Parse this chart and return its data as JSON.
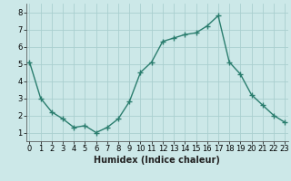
{
  "x": [
    0,
    1,
    2,
    3,
    4,
    5,
    6,
    7,
    8,
    9,
    10,
    11,
    12,
    13,
    14,
    15,
    16,
    17,
    18,
    19,
    20,
    21,
    22,
    23
  ],
  "y": [
    5.1,
    3.0,
    2.2,
    1.8,
    1.3,
    1.4,
    1.0,
    1.3,
    1.8,
    2.8,
    4.5,
    5.1,
    6.3,
    6.5,
    6.7,
    6.8,
    7.2,
    7.8,
    5.1,
    4.4,
    3.2,
    2.6,
    2.0,
    1.6
  ],
  "xlabel": "Humidex (Indice chaleur)",
  "line_color": "#2a7d6e",
  "marker_color": "#2a7d6e",
  "bg_color": "#cce8e8",
  "grid_color": "#aacfcf",
  "xlim": [
    -0.3,
    23.3
  ],
  "ylim": [
    0.5,
    8.5
  ],
  "yticks": [
    1,
    2,
    3,
    4,
    5,
    6,
    7,
    8
  ],
  "xticks": [
    0,
    1,
    2,
    3,
    4,
    5,
    6,
    7,
    8,
    9,
    10,
    11,
    12,
    13,
    14,
    15,
    16,
    17,
    18,
    19,
    20,
    21,
    22,
    23
  ],
  "tick_fontsize": 6.0,
  "xlabel_fontsize": 7.0
}
